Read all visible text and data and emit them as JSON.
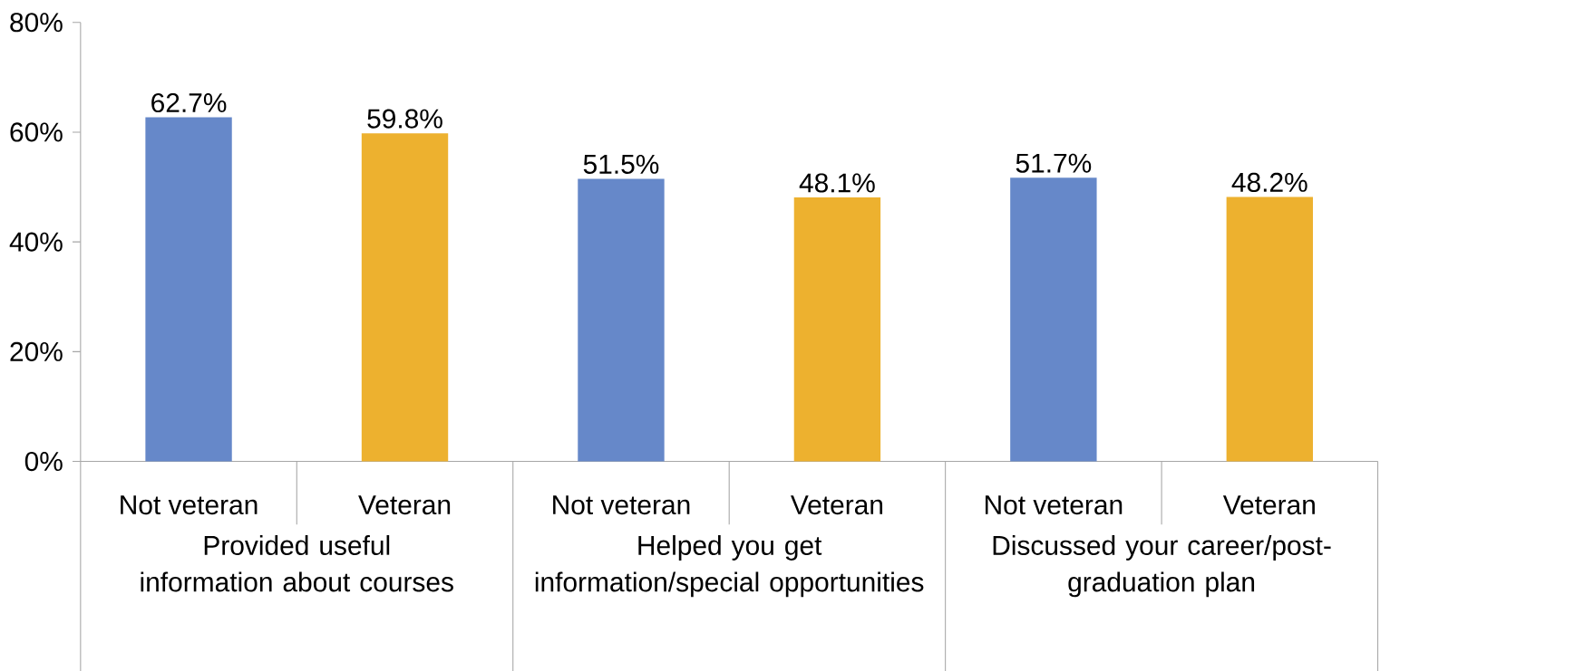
{
  "chart_data": {
    "type": "bar",
    "categories": [
      "Provided useful information about courses",
      "Helped you get information/special opportunities",
      "Discussed your career/post-graduation plan"
    ],
    "series": [
      {
        "name": "Not veteran",
        "color": "#6688c9",
        "values": [
          62.7,
          51.5,
          51.7
        ],
        "value_labels": [
          "62.7%",
          "51.5%",
          "51.7%"
        ]
      },
      {
        "name": "Veteran",
        "color": "#edb12f",
        "values": [
          59.8,
          48.1,
          48.2
        ],
        "value_labels": [
          "59.8%",
          "48.1%",
          "48.2%"
        ]
      }
    ],
    "ylim": [
      0,
      80
    ],
    "yticks": [
      {
        "value": 0,
        "label": "0%"
      },
      {
        "value": 20,
        "label": "20%"
      },
      {
        "value": 40,
        "label": "40%"
      },
      {
        "value": 60,
        "label": "60%"
      },
      {
        "value": 80,
        "label": "80%"
      }
    ]
  }
}
